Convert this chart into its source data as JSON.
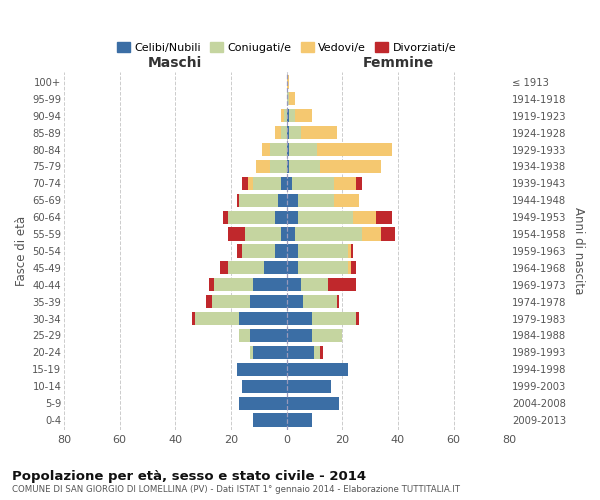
{
  "age_groups": [
    "0-4",
    "5-9",
    "10-14",
    "15-19",
    "20-24",
    "25-29",
    "30-34",
    "35-39",
    "40-44",
    "45-49",
    "50-54",
    "55-59",
    "60-64",
    "65-69",
    "70-74",
    "75-79",
    "80-84",
    "85-89",
    "90-94",
    "95-99",
    "100+"
  ],
  "birth_years": [
    "2009-2013",
    "2004-2008",
    "1999-2003",
    "1994-1998",
    "1989-1993",
    "1984-1988",
    "1979-1983",
    "1974-1978",
    "1969-1973",
    "1964-1968",
    "1959-1963",
    "1954-1958",
    "1949-1953",
    "1944-1948",
    "1939-1943",
    "1934-1938",
    "1929-1933",
    "1924-1928",
    "1919-1923",
    "1914-1918",
    "≤ 1913"
  ],
  "colors": {
    "celibi": "#3b6ea5",
    "coniugati": "#c5d5a0",
    "vedovi": "#f5c870",
    "divorziati": "#c0282c"
  },
  "males": {
    "celibi": [
      12,
      17,
      16,
      18,
      12,
      13,
      17,
      13,
      12,
      8,
      4,
      2,
      4,
      3,
      2,
      0,
      0,
      0,
      0,
      0,
      0
    ],
    "coniugati": [
      0,
      0,
      0,
      0,
      1,
      4,
      16,
      14,
      14,
      13,
      12,
      13,
      17,
      14,
      10,
      6,
      6,
      2,
      1,
      0,
      0
    ],
    "vedovi": [
      0,
      0,
      0,
      0,
      0,
      0,
      0,
      0,
      0,
      0,
      0,
      0,
      0,
      0,
      2,
      5,
      3,
      2,
      1,
      0,
      0
    ],
    "divorziati": [
      0,
      0,
      0,
      0,
      0,
      0,
      1,
      2,
      2,
      3,
      2,
      6,
      2,
      1,
      2,
      0,
      0,
      0,
      0,
      0,
      0
    ]
  },
  "females": {
    "celibi": [
      9,
      19,
      16,
      22,
      10,
      9,
      9,
      6,
      5,
      4,
      4,
      3,
      4,
      4,
      2,
      1,
      1,
      1,
      1,
      0,
      0
    ],
    "coniugati": [
      0,
      0,
      0,
      0,
      2,
      11,
      16,
      12,
      10,
      18,
      18,
      24,
      20,
      13,
      15,
      11,
      10,
      4,
      2,
      1,
      0
    ],
    "vedovi": [
      0,
      0,
      0,
      0,
      0,
      0,
      0,
      0,
      0,
      1,
      1,
      7,
      8,
      9,
      8,
      22,
      27,
      13,
      6,
      2,
      1
    ],
    "divorziati": [
      0,
      0,
      0,
      0,
      1,
      0,
      1,
      1,
      10,
      2,
      1,
      5,
      6,
      0,
      2,
      0,
      0,
      0,
      0,
      0,
      0
    ]
  },
  "xlim": 80,
  "title": "Popolazione per età, sesso e stato civile - 2014",
  "subtitle": "COMUNE DI SAN GIORGIO DI LOMELLINA (PV) - Dati ISTAT 1° gennaio 2014 - Elaborazione TUTTITALIA.IT",
  "legend_labels": [
    "Celibi/Nubili",
    "Coniugati/e",
    "Vedovi/e",
    "Divorziati/e"
  ],
  "xlabel_left": "Maschi",
  "xlabel_right": "Femmine",
  "ylabel_left": "Fasce di età",
  "ylabel_right": "Anni di nascita",
  "xticks": [
    80,
    60,
    40,
    20,
    0,
    20,
    40,
    60,
    80
  ]
}
